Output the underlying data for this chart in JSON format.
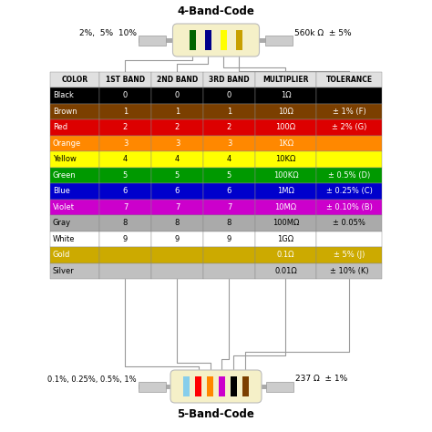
{
  "title": "4-Band-Code",
  "title2": "5-Band-Code",
  "bg_color": "#ffffff",
  "table_header": [
    "COLOR",
    "1ST BAND",
    "2ND BAND",
    "3RD BAND",
    "MULTIPLIER",
    "TOLERANCE"
  ],
  "rows": [
    {
      "color": "Black",
      "bg": "#000000",
      "fg": "#ffffff",
      "b1": "0",
      "b2": "0",
      "b3": "0",
      "mult": "1Ω",
      "tol": ""
    },
    {
      "color": "Brown",
      "bg": "#7B3F00",
      "fg": "#ffffff",
      "b1": "1",
      "b2": "1",
      "b3": "1",
      "mult": "10Ω",
      "tol": "± 1% (F)"
    },
    {
      "color": "Red",
      "bg": "#dd0000",
      "fg": "#ffffff",
      "b1": "2",
      "b2": "2",
      "b3": "2",
      "mult": "100Ω",
      "tol": "± 2% (G)"
    },
    {
      "color": "Orange",
      "bg": "#ff8800",
      "fg": "#ffffff",
      "b1": "3",
      "b2": "3",
      "b3": "3",
      "mult": "1KΩ",
      "tol": ""
    },
    {
      "color": "Yellow",
      "bg": "#ffff00",
      "fg": "#000000",
      "b1": "4",
      "b2": "4",
      "b3": "4",
      "mult": "10KΩ",
      "tol": ""
    },
    {
      "color": "Green",
      "bg": "#009900",
      "fg": "#ffffff",
      "b1": "5",
      "b2": "5",
      "b3": "5",
      "mult": "100KΩ",
      "tol": "± 0.5% (D)"
    },
    {
      "color": "Blue",
      "bg": "#0000cc",
      "fg": "#ffffff",
      "b1": "6",
      "b2": "6",
      "b3": "6",
      "mult": "1MΩ",
      "tol": "± 0.25% (C)"
    },
    {
      "color": "Violet",
      "bg": "#cc00cc",
      "fg": "#ffffff",
      "b1": "7",
      "b2": "7",
      "b3": "7",
      "mult": "10MΩ",
      "tol": "± 0.10% (B)"
    },
    {
      "color": "Gray",
      "bg": "#aaaaaa",
      "fg": "#000000",
      "b1": "8",
      "b2": "8",
      "b3": "8",
      "mult": "100MΩ",
      "tol": "± 0.05%"
    },
    {
      "color": "White",
      "bg": "#ffffff",
      "fg": "#000000",
      "b1": "9",
      "b2": "9",
      "b3": "9",
      "mult": "1GΩ",
      "tol": ""
    },
    {
      "color": "Gold",
      "bg": "#ccaa00",
      "fg": "#ffffff",
      "b1": "",
      "b2": "",
      "b3": "",
      "mult": "0.1Ω",
      "tol": "± 5% (J)"
    },
    {
      "color": "Silver",
      "bg": "#c0c0c0",
      "fg": "#000000",
      "b1": "",
      "b2": "",
      "b3": "",
      "mult": "0.01Ω",
      "tol": "± 10% (K)"
    }
  ],
  "resistor4_bands": [
    "#006400",
    "#00008B",
    "#ffff00",
    "#c8a000"
  ],
  "resistor5_bands": [
    "#87ceeb",
    "#ff0000",
    "#ff8800",
    "#cc00cc",
    "#000000",
    "#7B3F00"
  ],
  "label_4band_left": "2%,  5%  10%",
  "label_4band_right": "560k Ω  ± 5%",
  "label_5band_left": "0.1%, 0.25%, 0.5%, 1%",
  "label_5band_right": "237 Ω  ± 1%"
}
